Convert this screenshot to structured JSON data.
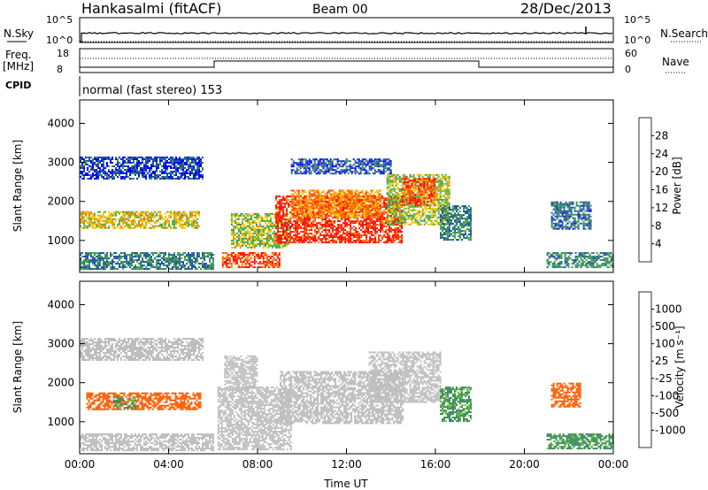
{
  "header": {
    "station": "Hankasalmi (fitACF)",
    "beam": "Beam 00",
    "date": "28/Dec/2013"
  },
  "noise_panel": {
    "left_label": "N.Sky",
    "right_label": "N.Search",
    "left_ticks": [
      "10^5",
      "10^0"
    ],
    "right_ticks": [
      "10^5",
      "10^0"
    ]
  },
  "freq_panel": {
    "left_label_1": "Freq.",
    "left_label_2": "[MHz]",
    "right_label": "Nave",
    "left_ticks": [
      "18",
      "8"
    ],
    "right_ticks": [
      "60",
      "0"
    ]
  },
  "cpid": {
    "label": "CPID",
    "program": "normal (fast stereo) 153"
  },
  "colors": {
    "power_scale": [
      "#0000ff",
      "#1f4faa",
      "#3a8a5a",
      "#45b045",
      "#f5c800",
      "#ff8c00",
      "#ff4000",
      "#ff0000"
    ],
    "velocity_scale": [
      "#ff0000",
      "#ff5a00",
      "#ff9a00",
      "#f0a020",
      "#bebebe",
      "#bebebe",
      "#6ec83c",
      "#3a8a5a",
      "#1f4faa",
      "#0000ff"
    ],
    "ground_scatter": "#bebebe"
  },
  "chart_data": [
    {
      "type": "heatmap",
      "panel": "power",
      "xlabel": "Time UT",
      "ylabel": "Slant Range [km]",
      "colorbar_label": "Power [dB]",
      "colorbar_ticks": [
        "4",
        "8",
        "12",
        "16",
        "20",
        "24",
        "28"
      ],
      "colorbar_range": [
        0,
        32
      ],
      "x_ticks": [
        "00:00",
        "04:00",
        "08:00",
        "12:00",
        "16:00",
        "20:00",
        "00:00"
      ],
      "y_ticks": [
        "1000",
        "2000",
        "3000",
        "4000"
      ],
      "xlim_hours": [
        0,
        24
      ],
      "ylim_km": [
        180,
        4600
      ],
      "regions": [
        {
          "t0": 0.0,
          "t1": 5.4,
          "r0": 1300,
          "r1": 1750,
          "value": 18
        },
        {
          "t0": 0.0,
          "t1": 5.5,
          "r0": 2600,
          "r1": 3150,
          "value": 5
        },
        {
          "t0": 0.0,
          "t1": 6.0,
          "r0": 250,
          "r1": 700,
          "value": 9
        },
        {
          "t0": 6.4,
          "t1": 9.0,
          "r0": 300,
          "r1": 700,
          "value": 27
        },
        {
          "t0": 6.8,
          "t1": 9.4,
          "r0": 800,
          "r1": 1700,
          "value": 16
        },
        {
          "t0": 8.8,
          "t1": 14.5,
          "r0": 950,
          "r1": 2150,
          "value": 28
        },
        {
          "t0": 9.5,
          "t1": 13.5,
          "r0": 1600,
          "r1": 2300,
          "value": 22
        },
        {
          "t0": 13.8,
          "t1": 16.6,
          "r0": 1400,
          "r1": 2700,
          "value": 16
        },
        {
          "t0": 14.5,
          "t1": 16.0,
          "r0": 1900,
          "r1": 2600,
          "value": 26
        },
        {
          "t0": 16.2,
          "t1": 17.6,
          "r0": 1000,
          "r1": 1900,
          "value": 9
        },
        {
          "t0": 9.5,
          "t1": 14.0,
          "r0": 2700,
          "r1": 3100,
          "value": 6
        },
        {
          "t0": 21.0,
          "t1": 24.0,
          "r0": 300,
          "r1": 700,
          "value": 10
        },
        {
          "t0": 21.2,
          "t1": 23.0,
          "r0": 1300,
          "r1": 2000,
          "value": 8
        }
      ]
    },
    {
      "type": "heatmap",
      "panel": "velocity",
      "xlabel": "Time UT",
      "ylabel": "Slant Range [km]",
      "colorbar_label": "Velocity [m s⁻¹]",
      "colorbar_ticks": [
        "1000",
        "500",
        "100",
        "25",
        "-25",
        "-100",
        "-500",
        "-1000"
      ],
      "colorbar_range": [
        -1000,
        1000
      ],
      "x_ticks": [
        "00:00",
        "04:00",
        "08:00",
        "12:00",
        "16:00",
        "20:00",
        "00:00"
      ],
      "y_ticks": [
        "1000",
        "2000",
        "3000",
        "4000"
      ],
      "xlim_hours": [
        0,
        24
      ],
      "ylim_km": [
        180,
        4600
      ],
      "regions": [
        {
          "t0": 0.3,
          "t1": 5.4,
          "r0": 1300,
          "r1": 1750,
          "value": -250
        },
        {
          "t0": 1.5,
          "t1": 2.5,
          "r0": 1350,
          "r1": 1650,
          "value": 150
        },
        {
          "t0": 0.0,
          "t1": 6.0,
          "r0": 250,
          "r1": 700,
          "value": 0
        },
        {
          "t0": 0.0,
          "t1": 5.5,
          "r0": 2600,
          "r1": 3150,
          "value": 0
        },
        {
          "t0": 6.2,
          "t1": 9.5,
          "r0": 300,
          "r1": 1900,
          "value": 0
        },
        {
          "t0": 6.5,
          "t1": 8.0,
          "r0": 1800,
          "r1": 2700,
          "value": 0
        },
        {
          "t0": 9.0,
          "t1": 14.5,
          "r0": 950,
          "r1": 2300,
          "value": 0
        },
        {
          "t0": 13.0,
          "t1": 16.2,
          "r0": 1500,
          "r1": 2800,
          "value": 0
        },
        {
          "t0": 16.2,
          "t1": 17.6,
          "r0": 1000,
          "r1": 1900,
          "value": 150
        },
        {
          "t0": 21.0,
          "t1": 24.0,
          "r0": 300,
          "r1": 700,
          "value": 200
        },
        {
          "t0": 21.2,
          "t1": 22.5,
          "r0": 1400,
          "r1": 2000,
          "value": -300
        }
      ]
    }
  ]
}
